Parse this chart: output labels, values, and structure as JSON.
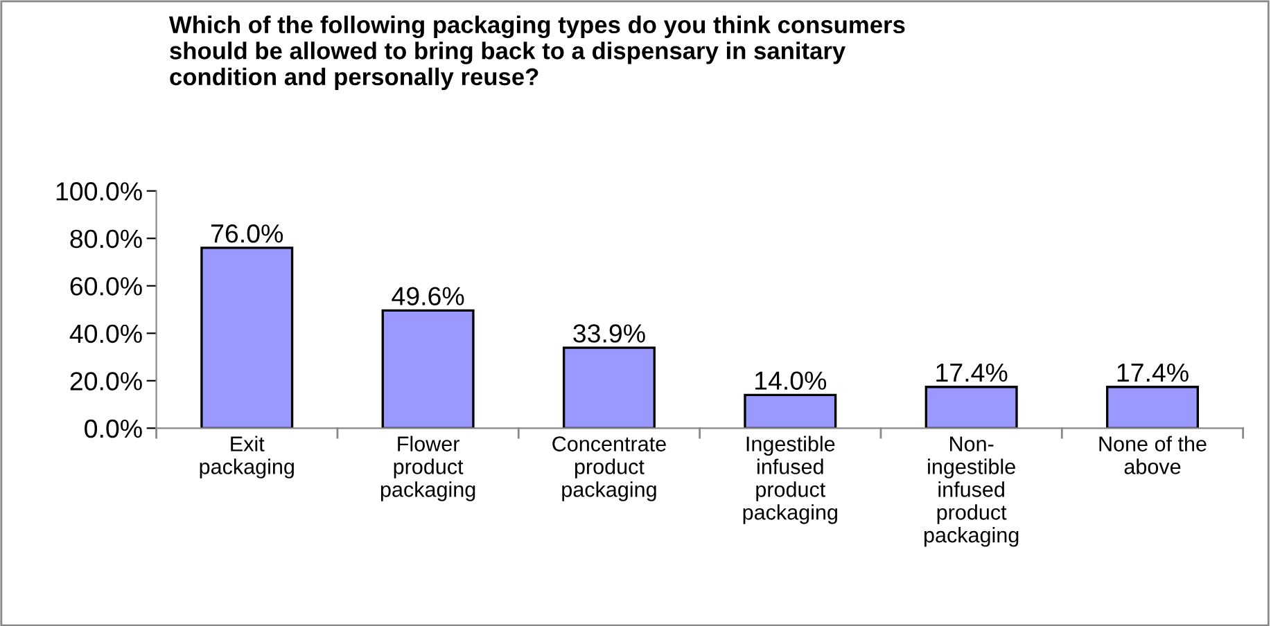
{
  "chart_data": {
    "type": "bar",
    "title": "Which of the following packaging types do you think consumers\nshould be allowed to bring back to a dispensary in sanitary\ncondition and personally reuse?",
    "categories": [
      "Exit\npackaging",
      "Flower\nproduct\npackaging",
      "Concentrate\nproduct\npackaging",
      "Ingestible\ninfused\nproduct\npackaging",
      "Non-\ningestible\ninfused\nproduct\npackaging",
      "None of the\nabove"
    ],
    "values": [
      76.0,
      49.6,
      33.9,
      14.0,
      17.4,
      17.4
    ],
    "value_labels": [
      "76.0%",
      "49.6%",
      "33.9%",
      "14.0%",
      "17.4%",
      "17.4%"
    ],
    "color": "#9999ff",
    "ylim": [
      0,
      100
    ],
    "yticks": [
      {
        "value": 0,
        "label": "0.0%"
      },
      {
        "value": 20,
        "label": "20.0%"
      },
      {
        "value": 40,
        "label": "40.0%"
      },
      {
        "value": 60,
        "label": "60.0%"
      },
      {
        "value": 80,
        "label": "80.0%"
      },
      {
        "value": 100,
        "label": "100.0%"
      }
    ],
    "grid": false,
    "legend": false
  }
}
